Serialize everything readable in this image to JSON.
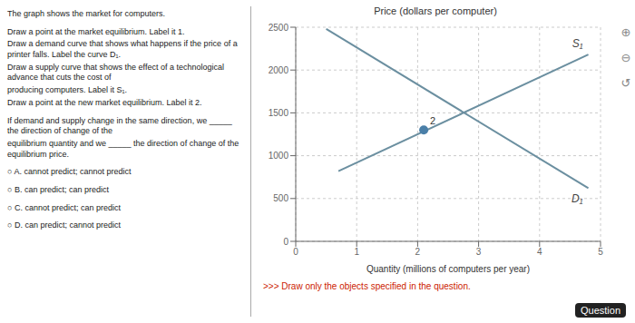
{
  "chart_data": {
    "type": "line",
    "title": "Price (dollars per computer)",
    "xlabel": "Quantity (millions of computers per year)",
    "subtitle": [
      "The graph shows the market for computers.",
      "Draw a point at the market equilibrium. Label it 1.",
      "Draw a demand curve that shows what happens if the price of a printer falls. Label the curve D₁.",
      "Draw a supply curve that shows the effect of a technological advance that cuts the cost of",
      "producing computers. Label it S₁.",
      "Draw a point at the new market equilibrium. Label it 2.",
      "If demand and supply change in the same direction, we _____ the direction of change of the",
      "equilibrium quantity and we _____ the direction of change of the equilibrium price.",
      "○ A.  cannot predict; cannot predict",
      "○ B.  can predict; can predict",
      "○ C.  cannot predict; can predict",
      "○ D.  can predict; cannot predict"
    ],
    "xlim": [
      0,
      5
    ],
    "ylim": [
      0,
      2500
    ],
    "xticks": [
      0,
      1,
      2,
      3,
      4,
      5
    ],
    "yticks": [
      0,
      500,
      1000,
      1500,
      2000,
      2500
    ],
    "grid": true,
    "series": [
      {
        "name": "D₁",
        "color": "#6b8fa0",
        "x": [
          0.5,
          4.8
        ],
        "values": [
          2480,
          620
        ]
      },
      {
        "name": "S₁",
        "color": "#6b8fa0",
        "x": [
          0.7,
          4.8
        ],
        "values": [
          820,
          2180
        ]
      },
      {
        "name": "2",
        "type": "scatter",
        "marker": "circle",
        "color": "#4a7fa8",
        "x": [
          2.1
        ],
        "values": [
          1300
        ]
      }
    ],
    "annotations": [
      {
        "text": ">>> Draw only the objects specified in the question.",
        "color": "#cc2200"
      },
      {
        "text": "Question"
      },
      {
        "text": "⊕"
      },
      {
        "text": "⊖"
      },
      {
        "text": "↺"
      }
    ]
  }
}
